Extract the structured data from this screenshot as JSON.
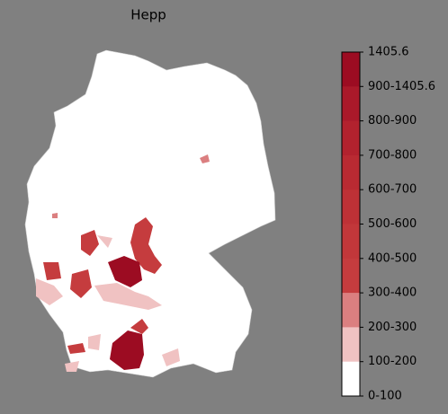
{
  "chart_data": {
    "type": "choropleth",
    "title": "Hepp",
    "colorbar": {
      "labels": [
        "0-100",
        "100-200",
        "200-300",
        "300-400",
        "400-500",
        "500-600",
        "600-700",
        "700-800",
        "800-900",
        "900-1405.6",
        "1405.6"
      ],
      "colors": [
        "#ffffff",
        "#f0c2c2",
        "#db7f80",
        "#c53c3e",
        "#c2373a",
        "#be3136",
        "#b92a32",
        "#b2222e",
        "#aa192a",
        "#9c0c22"
      ]
    }
  }
}
